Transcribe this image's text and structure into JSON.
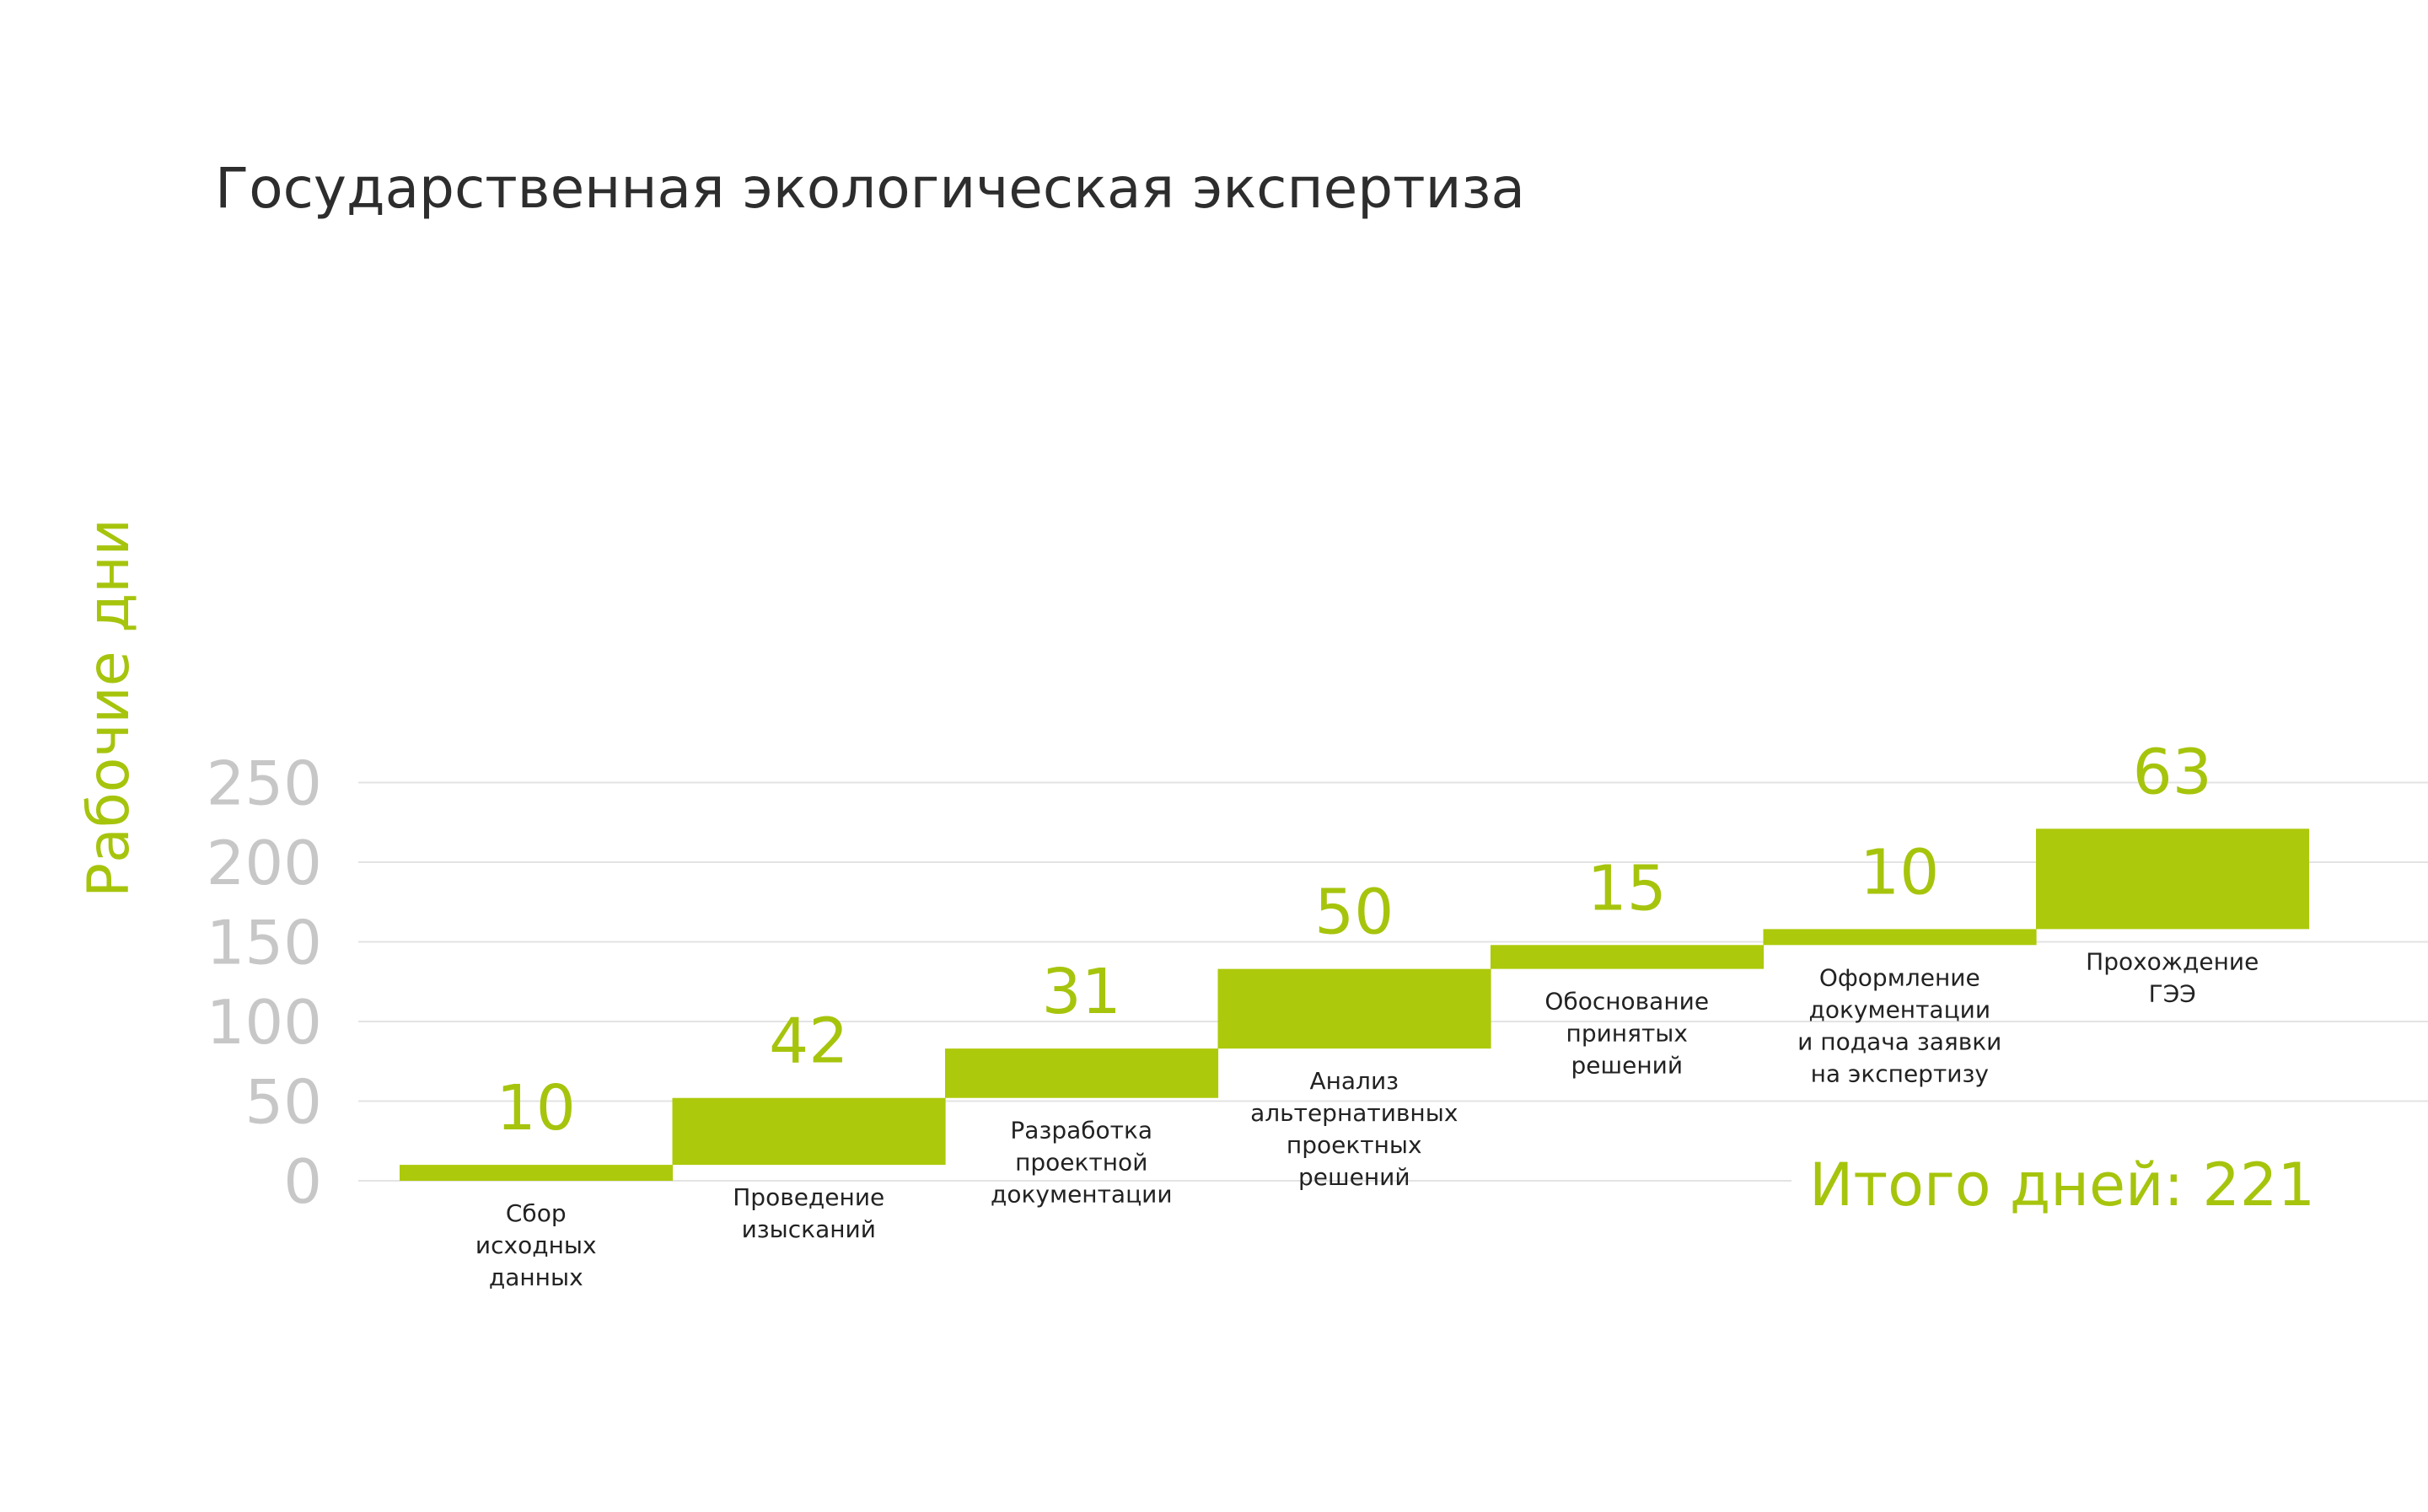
{
  "chart_data": {
    "type": "bar",
    "subtype": "waterfall",
    "title": "Государственная экологическая экспертиза",
    "ylabel": "Рабочие дни",
    "xlabel": "",
    "ylim": [
      0,
      250
    ],
    "yticks": [
      "0",
      "50",
      "100",
      "150",
      "200",
      "250"
    ],
    "grid": true,
    "categories": [
      [
        "Сбор",
        "исходных",
        "данных"
      ],
      [
        "Проведение",
        "изысканий"
      ],
      [
        "Разработка",
        "проектной",
        "документации"
      ],
      [
        "Анализ",
        "альтернативных",
        "проектных",
        "решений"
      ],
      [
        "Обоснование",
        "принятых",
        "решений"
      ],
      [
        "Оформление",
        "документации",
        "и подача заявки",
        "на экспертизу"
      ],
      [
        "Прохождение",
        "ГЭЭ"
      ]
    ],
    "values": [
      10,
      42,
      31,
      50,
      15,
      10,
      63
    ],
    "value_labels": [
      "10",
      "42",
      "31",
      "50",
      "15",
      "10",
      "63"
    ],
    "total_label": "Итого дней: 221",
    "colors": {
      "bar": "#adc90b",
      "accent_text": "#a7c40d",
      "tick": "#c7c7c7",
      "grid": "#e3e3e3",
      "title": "#2d2d2d",
      "category_text": "#222222"
    }
  }
}
